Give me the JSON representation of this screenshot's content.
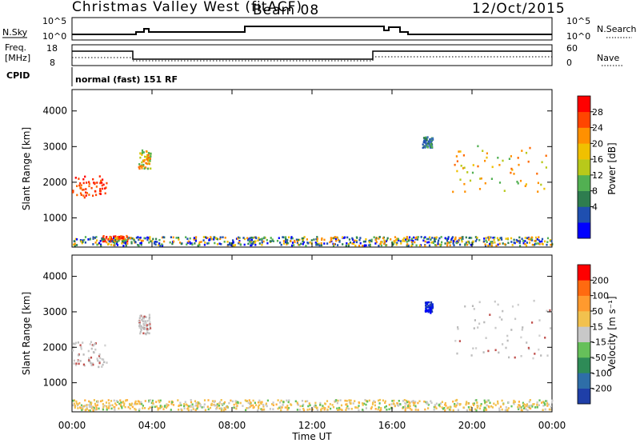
{
  "header": {
    "station": "Christmas Valley West (fitACF)",
    "beam": "Beam 08",
    "date": "12/Oct/2015"
  },
  "nsky_panel": {
    "left_label": "N.Sky",
    "left_ticks": [
      "10^5",
      "10^0"
    ],
    "right_ticks": [
      "10^5",
      "10^0"
    ],
    "right_label": "N.Search"
  },
  "freq_panel": {
    "left_label_1": "Freq.",
    "left_label_2": "[MHz]",
    "left_ticks": [
      "18",
      "8"
    ],
    "right_ticks": [
      "60",
      "0"
    ],
    "right_label": "Nave"
  },
  "cpid_panel": {
    "label": "CPID",
    "text": "normal (fast) 151 RF"
  },
  "chart_data": [
    {
      "type": "scatter",
      "name": "power",
      "ylabel": "Slant Range [km]",
      "ylim": [
        180,
        4600
      ],
      "yticks": [
        "4000",
        "3000",
        "2000",
        "1000"
      ],
      "colorbar": {
        "label": "Power [dB]",
        "ticks": [
          "28",
          "24",
          "20",
          "16",
          "12",
          "8",
          "4"
        ],
        "colors": [
          "#0000ff",
          "#1f4fb0",
          "#2e7d4f",
          "#52b052",
          "#b8c91a",
          "#f0c000",
          "#ff9000",
          "#ff4500",
          "#ff0000"
        ]
      },
      "regions": [
        {
          "hours": [
            0.0,
            1.7
          ],
          "ranges_km": [
            1550,
            2150
          ],
          "level": "high"
        },
        {
          "hours": [
            3.3,
            3.9
          ],
          "ranges_km": [
            2350,
            2900
          ],
          "level": "mid"
        },
        {
          "hours": [
            1.5,
            2.8
          ],
          "ranges_km": [
            300,
            480
          ],
          "level": "high"
        },
        {
          "hours": [
            17.5,
            18.0
          ],
          "ranges_km": [
            2950,
            3250
          ],
          "level": "low"
        },
        {
          "hours": [
            19.0,
            23.99
          ],
          "ranges_km": [
            1700,
            3000
          ],
          "level": "mid"
        },
        {
          "hours": [
            0.0,
            23.99
          ],
          "ranges_km": [
            200,
            450
          ],
          "level": "ground"
        }
      ]
    },
    {
      "type": "scatter",
      "name": "velocity",
      "ylabel": "Slant Range [km]",
      "xlabel": "Time UT",
      "xticks": [
        "00:00",
        "04:00",
        "08:00",
        "12:00",
        "16:00",
        "20:00",
        "00:00"
      ],
      "ylim": [
        180,
        4600
      ],
      "yticks": [
        "4000",
        "3000",
        "2000",
        "1000"
      ],
      "colorbar": {
        "label": "Velocity [m s⁻¹]",
        "ticks": [
          "200",
          "100",
          "50",
          "15",
          "-15",
          "-50",
          "-100",
          "-200"
        ],
        "colors": [
          "#1f3fa8",
          "#2e6ea8",
          "#2e8b57",
          "#66c05a",
          "#c8c8c8",
          "#f2c14e",
          "#ff9a2e",
          "#ff6a10",
          "#ff0000"
        ]
      },
      "regions": [
        {
          "hours": [
            0.0,
            1.7
          ],
          "ranges_km": [
            1400,
            2150
          ],
          "level": "gray"
        },
        {
          "hours": [
            3.3,
            3.9
          ],
          "ranges_km": [
            2350,
            2900
          ],
          "level": "gray"
        },
        {
          "hours": [
            17.6,
            18.0
          ],
          "ranges_km": [
            2950,
            3250
          ],
          "level": "blue"
        },
        {
          "hours": [
            19.0,
            23.99
          ],
          "ranges_km": [
            1650,
            3300
          ],
          "level": "gray"
        },
        {
          "hours": [
            0.0,
            23.99
          ],
          "ranges_km": [
            200,
            500
          ],
          "level": "ground"
        }
      ]
    }
  ]
}
